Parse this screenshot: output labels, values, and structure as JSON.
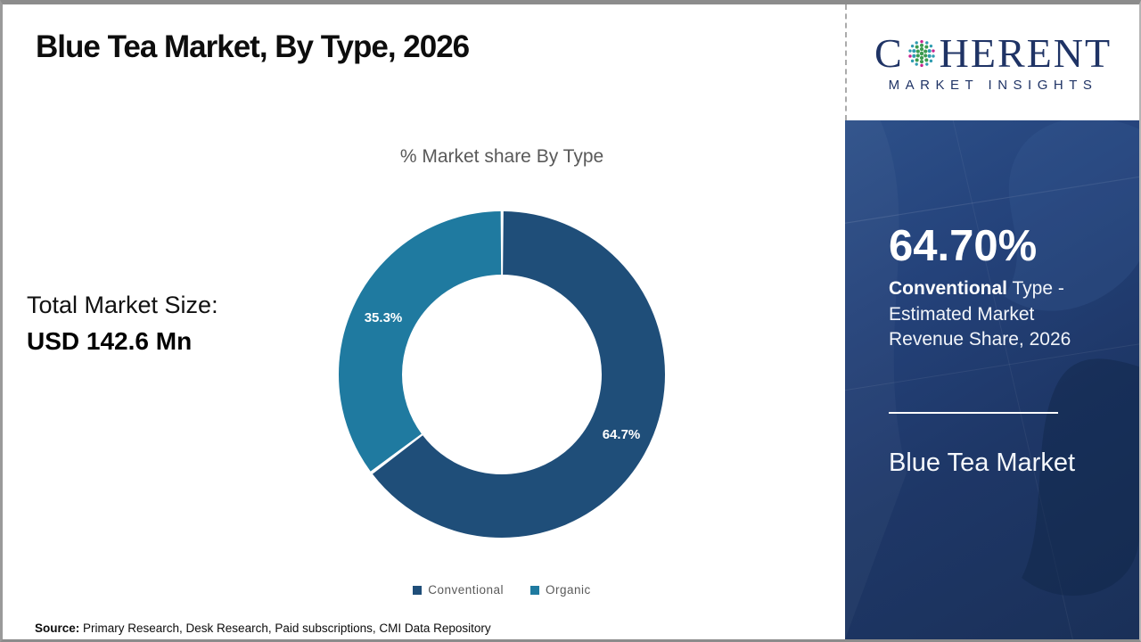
{
  "header": {
    "title": "Blue Tea Market, By Type, 2026"
  },
  "logo": {
    "word_start": "C",
    "word_end": "HERENT",
    "subtitle": "MARKET INSIGHTS",
    "brand_color": "#1f3365"
  },
  "chart_data": {
    "type": "pie",
    "donut": true,
    "title": "% Market share By Type",
    "categories": [
      "Conventional",
      "Organic"
    ],
    "values": [
      64.7,
      35.3
    ],
    "labels": [
      "64.7%",
      "35.3%"
    ],
    "colors": [
      "#1F4E79",
      "#1F7AA0"
    ],
    "legend_position": "bottom"
  },
  "total_market": {
    "label": "Total Market Size:",
    "value": "USD 142.6 Mn"
  },
  "sidebar": {
    "stat_value": "64.70%",
    "stat_bold": "Conventional",
    "stat_rest": " Type - Estimated Market Revenue Share, 2026",
    "panel_title": "Blue Tea Market",
    "panel_color": "#1e3767"
  },
  "footer": {
    "source_label": "Source:",
    "source_text": " Primary Research, Desk Research, Paid subscriptions, CMI Data Repository"
  }
}
